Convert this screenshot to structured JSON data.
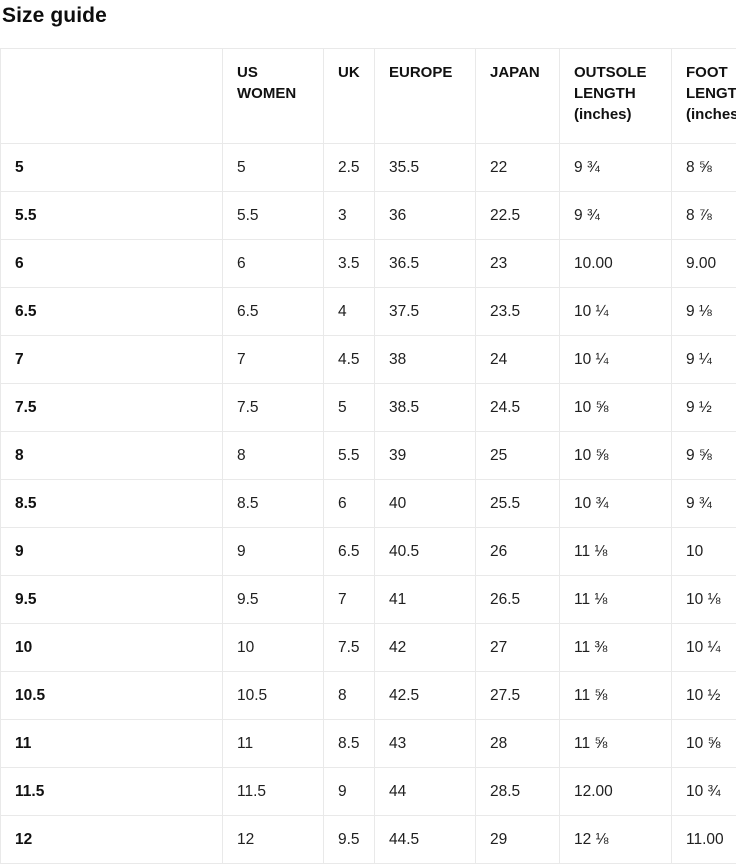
{
  "page": {
    "title": "Size guide"
  },
  "colors": {
    "background": "#ffffff",
    "text": "#1a1a1a",
    "border": "#e9e9e9"
  },
  "table": {
    "columns": [
      "",
      "US WOMEN",
      "UK",
      "EUROPE",
      "JAPAN",
      "OUTSOLE LENGTH (inches)",
      "FOOT LENGTH (inches)"
    ],
    "fields": [
      "label",
      "us_women",
      "uk",
      "europe",
      "japan",
      "outsole_length",
      "foot_length"
    ],
    "rows": [
      {
        "label": "5",
        "us_women": "5",
        "uk": "2.5",
        "europe": "35.5",
        "japan": "22",
        "outsole_length": "9 ¾",
        "foot_length": "8 ⅝"
      },
      {
        "label": "5.5",
        "us_women": "5.5",
        "uk": "3",
        "europe": "36",
        "japan": "22.5",
        "outsole_length": "9 ¾",
        "foot_length": "8 ⅞"
      },
      {
        "label": "6",
        "us_women": "6",
        "uk": "3.5",
        "europe": "36.5",
        "japan": "23",
        "outsole_length": "10.00",
        "foot_length": "9.00"
      },
      {
        "label": "6.5",
        "us_women": "6.5",
        "uk": "4",
        "europe": "37.5",
        "japan": "23.5",
        "outsole_length": "10 ¼",
        "foot_length": "9 ⅛"
      },
      {
        "label": "7",
        "us_women": "7",
        "uk": "4.5",
        "europe": "38",
        "japan": "24",
        "outsole_length": "10 ¼",
        "foot_length": "9 ¼"
      },
      {
        "label": "7.5",
        "us_women": "7.5",
        "uk": "5",
        "europe": "38.5",
        "japan": "24.5",
        "outsole_length": "10 ⅝",
        "foot_length": "9 ½"
      },
      {
        "label": "8",
        "us_women": "8",
        "uk": "5.5",
        "europe": "39",
        "japan": "25",
        "outsole_length": "10 ⅝",
        "foot_length": "9 ⅝"
      },
      {
        "label": "8.5",
        "us_women": "8.5",
        "uk": "6",
        "europe": "40",
        "japan": "25.5",
        "outsole_length": "10 ¾",
        "foot_length": "9 ¾"
      },
      {
        "label": "9",
        "us_women": "9",
        "uk": "6.5",
        "europe": "40.5",
        "japan": "26",
        "outsole_length": "11 ⅛",
        "foot_length": "10"
      },
      {
        "label": "9.5",
        "us_women": "9.5",
        "uk": "7",
        "europe": "41",
        "japan": "26.5",
        "outsole_length": "11 ⅛",
        "foot_length": "10 ⅛"
      },
      {
        "label": "10",
        "us_women": "10",
        "uk": "7.5",
        "europe": "42",
        "japan": "27",
        "outsole_length": "11 ⅜",
        "foot_length": "10 ¼"
      },
      {
        "label": "10.5",
        "us_women": "10.5",
        "uk": "8",
        "europe": "42.5",
        "japan": "27.5",
        "outsole_length": "11 ⅝",
        "foot_length": "10 ½"
      },
      {
        "label": "11",
        "us_women": "11",
        "uk": "8.5",
        "europe": "43",
        "japan": "28",
        "outsole_length": "11 ⅝",
        "foot_length": "10 ⅝"
      },
      {
        "label": "11.5",
        "us_women": "11.5",
        "uk": "9",
        "europe": "44",
        "japan": "28.5",
        "outsole_length": "12.00",
        "foot_length": "10 ¾"
      },
      {
        "label": "12",
        "us_women": "12",
        "uk": "9.5",
        "europe": "44.5",
        "japan": "29",
        "outsole_length": "12 ⅛",
        "foot_length": "11.00"
      }
    ]
  }
}
